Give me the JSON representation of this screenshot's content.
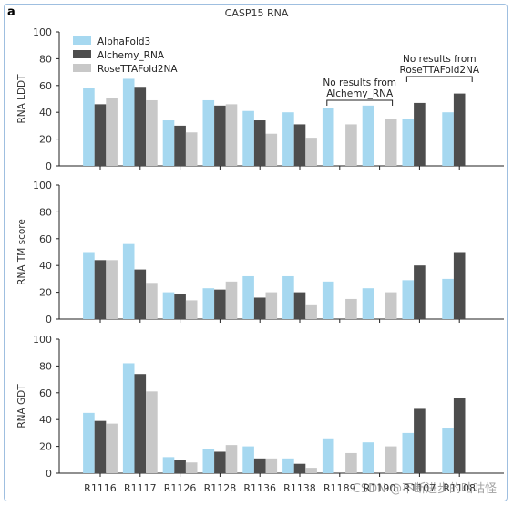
{
  "figure": {
    "panel_letter": "a",
    "title": "CASP15 RNA",
    "watermark": "CSDN @不断进步的咕咕怪"
  },
  "colors": {
    "AlphaFold3": "#a6d8f0",
    "Alchemy_RNA": "#4d4d4d",
    "RoseTTAFold2NA": "#c8c8c8"
  },
  "annotations": {
    "alchemy_note": [
      "No results from",
      "Alchemy_RNA"
    ],
    "rosetta_note": [
      "No results from",
      "RoseTTAFold2NA"
    ]
  },
  "chart_data": [
    {
      "type": "bar",
      "ylabel": "RNA LDDT",
      "ylim": [
        0,
        100
      ],
      "yticks": [
        0,
        20,
        40,
        60,
        80,
        100
      ],
      "legend": "top-left",
      "categories": [
        "R1116",
        "R1117",
        "R1126",
        "R1128",
        "R1136",
        "R1138",
        "R1189",
        "R1190",
        "R1107",
        "R1108"
      ],
      "series": [
        {
          "name": "AlphaFold3",
          "values": [
            58,
            65,
            34,
            49,
            41,
            40,
            43,
            45,
            35,
            40
          ]
        },
        {
          "name": "Alchemy_RNA",
          "values": [
            46,
            59,
            30,
            45,
            34,
            31,
            null,
            null,
            47,
            54
          ]
        },
        {
          "name": "RoseTTAFold2NA",
          "values": [
            51,
            49,
            25,
            46,
            24,
            21,
            31,
            35,
            null,
            null
          ]
        }
      ]
    },
    {
      "type": "bar",
      "ylabel": "RNA TM score",
      "ylim": [
        0,
        100
      ],
      "yticks": [
        0,
        20,
        40,
        60,
        80,
        100
      ],
      "categories": [
        "R1116",
        "R1117",
        "R1126",
        "R1128",
        "R1136",
        "R1138",
        "R1189",
        "R1190",
        "R1107",
        "R1108"
      ],
      "series": [
        {
          "name": "AlphaFold3",
          "values": [
            50,
            56,
            20,
            23,
            32,
            32,
            28,
            23,
            29,
            30
          ]
        },
        {
          "name": "Alchemy_RNA",
          "values": [
            44,
            37,
            19,
            22,
            16,
            20,
            null,
            null,
            40,
            50
          ]
        },
        {
          "name": "RoseTTAFold2NA",
          "values": [
            44,
            27,
            14,
            28,
            20,
            11,
            15,
            20,
            null,
            null
          ]
        }
      ]
    },
    {
      "type": "bar",
      "ylabel": "RNA GDT",
      "ylim": [
        0,
        100
      ],
      "yticks": [
        0,
        20,
        40,
        60,
        80,
        100
      ],
      "categories": [
        "R1116",
        "R1117",
        "R1126",
        "R1128",
        "R1136",
        "R1138",
        "R1189",
        "R1190",
        "R1107",
        "R1108"
      ],
      "tick_labels": [
        "R1116",
        "R1117",
        "R1126",
        "R1128",
        "R1136",
        "R1138",
        "R1189",
        "R1190",
        "R1107",
        "R1108"
      ],
      "series": [
        {
          "name": "AlphaFold3",
          "values": [
            45,
            82,
            12,
            18,
            20,
            11,
            26,
            23,
            30,
            34
          ]
        },
        {
          "name": "Alchemy_RNA",
          "values": [
            39,
            74,
            10,
            16,
            11,
            7,
            null,
            null,
            48,
            56
          ]
        },
        {
          "name": "RoseTTAFold2NA",
          "values": [
            37,
            61,
            8,
            21,
            11,
            4,
            15,
            20,
            null,
            null
          ]
        }
      ]
    }
  ]
}
